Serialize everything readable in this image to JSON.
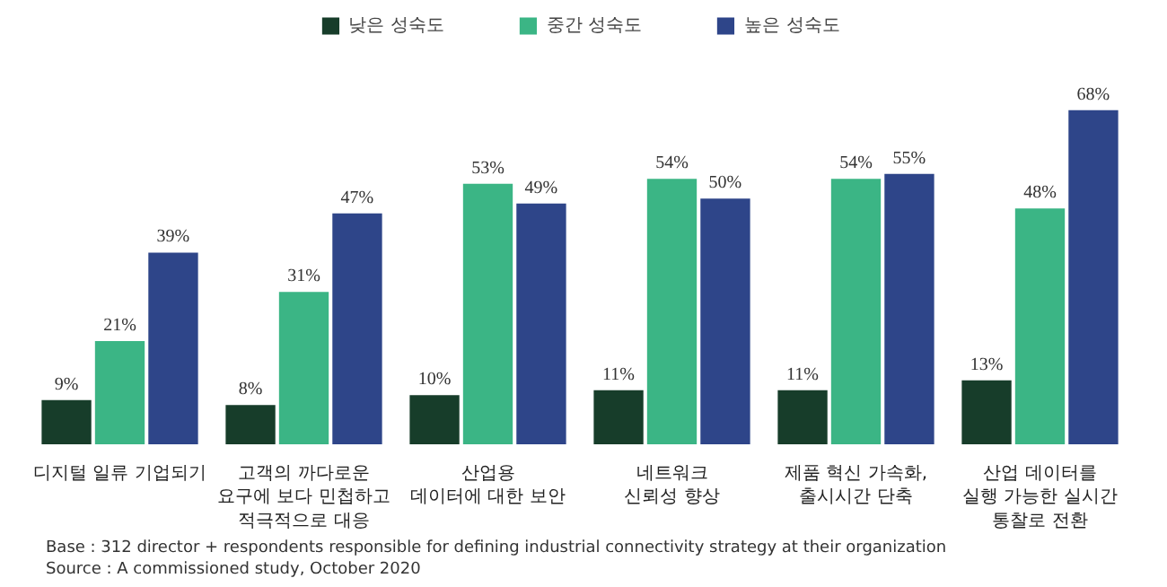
{
  "chart_data": {
    "type": "bar",
    "categories": [
      "디지털 일류 기업되기",
      "고객의 까다로운\n요구에 보다 민첩하고\n적극적으로 대응",
      "산업용\n데이터에 대한 보안",
      "네트워크\n신뢰성 향상",
      "제품 혁신 가속화,\n출시시간 단축",
      "산업 데이터를\n실행 가능한 실시간\n통찰로 전환"
    ],
    "series": [
      {
        "name": "낮은 성숙도",
        "color": "#173d2a",
        "values": [
          9,
          8,
          10,
          11,
          11,
          13
        ],
        "value_labels": [
          "9%",
          "8%",
          "10%",
          "11%",
          "11%",
          "13%"
        ]
      },
      {
        "name": "중간 성숙도",
        "color": "#3bb585",
        "values": [
          21,
          31,
          53,
          54,
          54,
          48
        ],
        "value_labels": [
          "21%",
          "31%",
          "53%",
          "54%",
          "54%",
          "48%"
        ]
      },
      {
        "name": "높은 성숙도",
        "color": "#2e4589",
        "values": [
          39,
          47,
          49,
          50,
          55,
          68
        ],
        "value_labels": [
          "39%",
          "47%",
          "49%",
          "50%",
          "55%",
          "68%"
        ]
      }
    ],
    "legend": "top",
    "annotations": [
      "Base : 312 director + respondents responsible for defining industrial connectivity strategy at their organization",
      "Source : A commissioned study, October 2020"
    ]
  }
}
